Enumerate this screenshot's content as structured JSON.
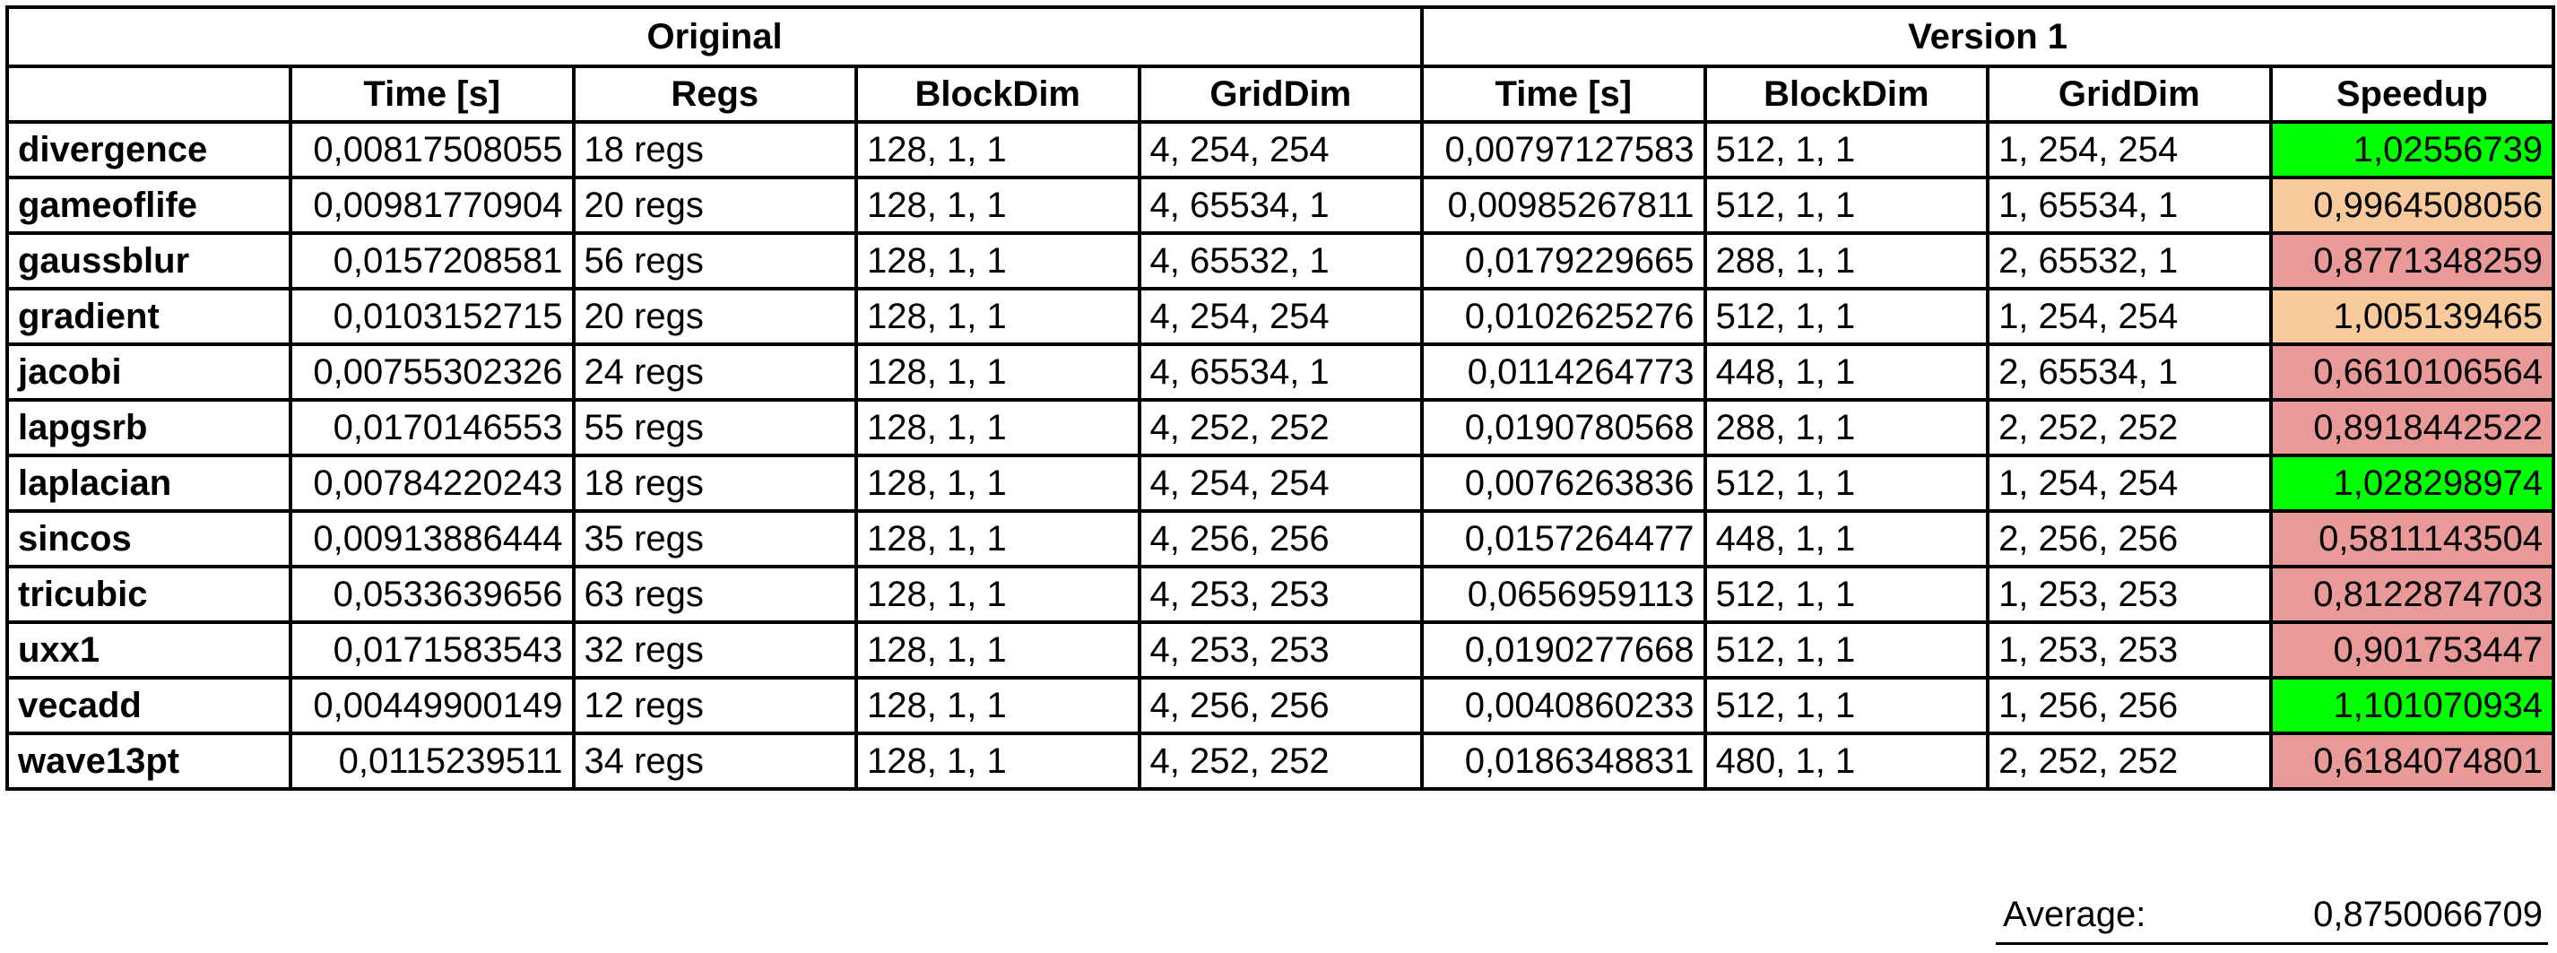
{
  "groups": [
    "Original",
    "Version 1"
  ],
  "headers": [
    "",
    "Time [s]",
    "Regs",
    "BlockDim",
    "GridDim",
    "Time [s]",
    "BlockDim",
    "GridDim",
    "Speedup"
  ],
  "colors": {
    "faster": "#00ff00",
    "neutral": "#f9cb9c",
    "slower": "#ea9999"
  },
  "rows": [
    {
      "name": "divergence",
      "orig_time": "0,00817508055",
      "regs": "18 regs",
      "orig_block": "128, 1, 1",
      "orig_grid": "4, 254, 254",
      "v1_time": "0,00797127583",
      "v1_block": "512, 1, 1",
      "v1_grid": "1, 254, 254",
      "speedup": "1,02556739",
      "status": "faster"
    },
    {
      "name": "gameoflife",
      "orig_time": "0,00981770904",
      "regs": "20 regs",
      "orig_block": "128, 1, 1",
      "orig_grid": "4, 65534, 1",
      "v1_time": "0,00985267811",
      "v1_block": "512, 1, 1",
      "v1_grid": "1, 65534, 1",
      "speedup": "0,9964508056",
      "status": "neutral"
    },
    {
      "name": "gaussblur",
      "orig_time": "0,0157208581",
      "regs": "56 regs",
      "orig_block": "128, 1, 1",
      "orig_grid": "4, 65532, 1",
      "v1_time": "0,0179229665",
      "v1_block": "288, 1, 1",
      "v1_grid": "2, 65532, 1",
      "speedup": "0,8771348259",
      "status": "slower"
    },
    {
      "name": "gradient",
      "orig_time": "0,0103152715",
      "regs": "20 regs",
      "orig_block": "128, 1, 1",
      "orig_grid": "4, 254, 254",
      "v1_time": "0,0102625276",
      "v1_block": "512, 1, 1",
      "v1_grid": "1, 254, 254",
      "speedup": "1,005139465",
      "status": "neutral"
    },
    {
      "name": "jacobi",
      "orig_time": "0,00755302326",
      "regs": "24 regs",
      "orig_block": "128, 1, 1",
      "orig_grid": "4, 65534, 1",
      "v1_time": "0,0114264773",
      "v1_block": "448, 1, 1",
      "v1_grid": "2, 65534, 1",
      "speedup": "0,6610106564",
      "status": "slower"
    },
    {
      "name": "lapgsrb",
      "orig_time": "0,0170146553",
      "regs": "55 regs",
      "orig_block": "128, 1, 1",
      "orig_grid": "4, 252, 252",
      "v1_time": "0,0190780568",
      "v1_block": "288, 1, 1",
      "v1_grid": "2, 252, 252",
      "speedup": "0,8918442522",
      "status": "slower"
    },
    {
      "name": "laplacian",
      "orig_time": "0,00784220243",
      "regs": "18 regs",
      "orig_block": "128, 1, 1",
      "orig_grid": "4, 254, 254",
      "v1_time": "0,0076263836",
      "v1_block": "512, 1, 1",
      "v1_grid": "1, 254, 254",
      "speedup": "1,028298974",
      "status": "faster"
    },
    {
      "name": "sincos",
      "orig_time": "0,00913886444",
      "regs": "35 regs",
      "orig_block": "128, 1, 1",
      "orig_grid": "4, 256, 256",
      "v1_time": "0,0157264477",
      "v1_block": "448, 1, 1",
      "v1_grid": "2, 256, 256",
      "speedup": "0,5811143504",
      "status": "slower"
    },
    {
      "name": "tricubic",
      "orig_time": "0,0533639656",
      "regs": "63 regs",
      "orig_block": "128, 1, 1",
      "orig_grid": "4, 253, 253",
      "v1_time": "0,0656959113",
      "v1_block": "512, 1, 1",
      "v1_grid": "1, 253, 253",
      "speedup": "0,8122874703",
      "status": "slower"
    },
    {
      "name": "uxx1",
      "orig_time": "0,0171583543",
      "regs": "32 regs",
      "orig_block": "128, 1, 1",
      "orig_grid": "4, 253, 253",
      "v1_time": "0,0190277668",
      "v1_block": "512, 1, 1",
      "v1_grid": "1, 253, 253",
      "speedup": "0,901753447",
      "status": "slower"
    },
    {
      "name": "vecadd",
      "orig_time": "0,00449900149",
      "regs": "12 regs",
      "orig_block": "128, 1, 1",
      "orig_grid": "4, 256, 256",
      "v1_time": "0,0040860233",
      "v1_block": "512, 1, 1",
      "v1_grid": "1, 256, 256",
      "speedup": "1,101070934",
      "status": "faster"
    },
    {
      "name": "wave13pt",
      "orig_time": "0,0115239511",
      "regs": "34 regs",
      "orig_block": "128, 1, 1",
      "orig_grid": "4, 252, 252",
      "v1_time": "0,0186348831",
      "v1_block": "480, 1, 1",
      "v1_grid": "2, 252, 252",
      "speedup": "0,6184074801",
      "status": "slower"
    }
  ],
  "summary": {
    "label": "Average:",
    "value": "0,8750066709"
  },
  "chart_data": {
    "type": "table",
    "column_groups": [
      {
        "name": "Original",
        "columns": [
          "Time [s]",
          "Regs",
          "BlockDim",
          "GridDim"
        ]
      },
      {
        "name": "Version 1",
        "columns": [
          "Time [s]",
          "BlockDim",
          "GridDim",
          "Speedup"
        ]
      }
    ],
    "categories": [
      "divergence",
      "gameoflife",
      "gaussblur",
      "gradient",
      "jacobi",
      "lapgsrb",
      "laplacian",
      "sincos",
      "tricubic",
      "uxx1",
      "vecadd",
      "wave13pt"
    ],
    "speedup_values": [
      1.02556739,
      0.9964508056,
      0.8771348259,
      1.005139465,
      0.6610106564,
      0.8918442522,
      1.028298974,
      0.5811143504,
      0.8122874703,
      0.901753447,
      1.101070934,
      0.6184074801
    ],
    "average_speedup": 0.8750066709
  }
}
